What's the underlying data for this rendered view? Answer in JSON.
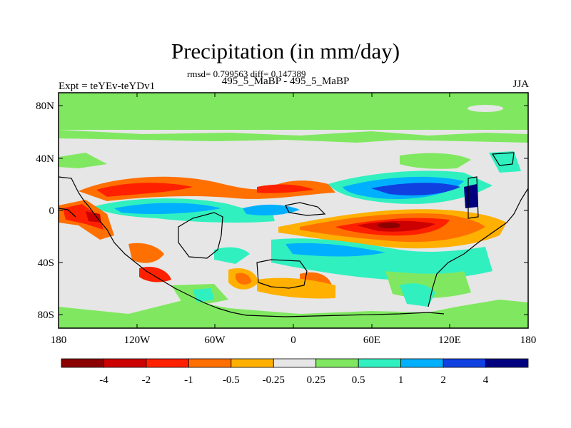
{
  "header": {
    "title": "Precipitation (in mm/day)",
    "stats": "rmsd= 0.799563 diff= 0.147389",
    "subtitle": "495_5_MaBP - 495_5_MaBP",
    "left_label": "Expt = teYEv-teYDv1",
    "right_label": "JJA"
  },
  "map": {
    "lat_ticks": [
      "80N",
      "40N",
      "0",
      "40S",
      "80S"
    ],
    "lon_ticks": [
      "180",
      "120W",
      "60W",
      "0",
      "60E",
      "120E",
      "180"
    ]
  },
  "colorbar": {
    "labels": [
      "-4",
      "-2",
      "-1",
      "-0.5",
      "-0.25",
      "0.25",
      "0.5",
      "1",
      "2",
      "4"
    ],
    "colors": [
      "#8b0000",
      "#cc0000",
      "#ff2000",
      "#ff7000",
      "#ffb000",
      "#e6e6e6",
      "#80e860",
      "#30f0c0",
      "#00b0ff",
      "#1040e0",
      "#000080"
    ]
  }
}
